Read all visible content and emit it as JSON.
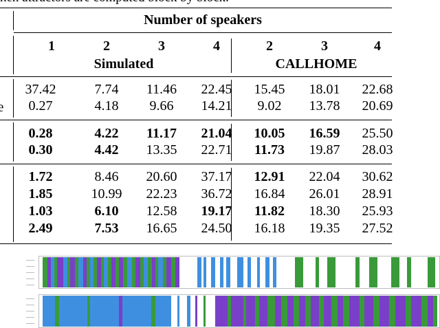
{
  "caption_tail": "hen attractors are computed block by block.",
  "header": {
    "group": "Number of speakers",
    "sim_cols": [
      "1",
      "2",
      "3",
      "4"
    ],
    "sim_label": "Simulated",
    "ch_cols": [
      "2",
      "3",
      "4"
    ],
    "ch_label": "CALLHOME"
  },
  "row_label_fragment": "e",
  "groups": [
    {
      "rows": [
        {
          "cells": [
            "37.42",
            "7.74",
            "11.46",
            "22.45",
            "15.45",
            "18.01",
            "22.68"
          ],
          "bold": [
            false,
            false,
            false,
            false,
            false,
            false,
            false
          ]
        },
        {
          "cells": [
            "0.27",
            "4.18",
            "9.66",
            "14.21",
            "9.02",
            "13.78",
            "20.69"
          ],
          "bold": [
            false,
            false,
            false,
            false,
            false,
            false,
            false
          ]
        }
      ]
    },
    {
      "rows": [
        {
          "cells": [
            "0.28",
            "4.22",
            "11.17",
            "21.04",
            "10.05",
            "16.59",
            "25.50"
          ],
          "bold": [
            true,
            true,
            true,
            true,
            true,
            true,
            false
          ]
        },
        {
          "cells": [
            "0.30",
            "4.42",
            "13.35",
            "22.71",
            "11.73",
            "19.87",
            "28.03"
          ],
          "bold": [
            true,
            true,
            false,
            false,
            true,
            false,
            false
          ]
        }
      ]
    },
    {
      "rows": [
        {
          "cells": [
            "1.72",
            "8.46",
            "20.60",
            "37.17",
            "12.91",
            "22.04",
            "30.62"
          ],
          "bold": [
            true,
            false,
            false,
            false,
            true,
            false,
            false
          ]
        },
        {
          "cells": [
            "1.85",
            "10.99",
            "22.23",
            "36.72",
            "16.84",
            "26.01",
            "28.91"
          ],
          "bold": [
            true,
            false,
            false,
            false,
            false,
            false,
            false
          ]
        },
        {
          "cells": [
            "1.03",
            "6.10",
            "12.58",
            "19.17",
            "11.82",
            "18.30",
            "25.93"
          ],
          "bold": [
            true,
            true,
            false,
            true,
            true,
            false,
            false
          ]
        },
        {
          "cells": [
            "2.49",
            "7.53",
            "16.65",
            "24.50",
            "16.18",
            "19.35",
            "27.52"
          ],
          "bold": [
            true,
            true,
            false,
            false,
            false,
            false,
            false
          ]
        }
      ]
    }
  ],
  "colors": {
    "green": "#3a9a3a",
    "purple": "#7a3fc8",
    "blue": "#3f8fe0"
  },
  "plots": [
    {
      "segments": [
        [
          0.008,
          0.02,
          "green"
        ],
        [
          0.02,
          0.03,
          "purple"
        ],
        [
          0.03,
          0.038,
          "blue"
        ],
        [
          0.038,
          0.045,
          "green"
        ],
        [
          0.045,
          0.06,
          "purple"
        ],
        [
          0.06,
          0.07,
          "blue"
        ],
        [
          0.07,
          0.078,
          "green"
        ],
        [
          0.078,
          0.09,
          "purple"
        ],
        [
          0.09,
          0.098,
          "green"
        ],
        [
          0.098,
          0.11,
          "blue"
        ],
        [
          0.11,
          0.118,
          "purple"
        ],
        [
          0.118,
          0.128,
          "green"
        ],
        [
          0.128,
          0.136,
          "blue"
        ],
        [
          0.136,
          0.145,
          "green"
        ],
        [
          0.145,
          0.155,
          "purple"
        ],
        [
          0.155,
          0.162,
          "green"
        ],
        [
          0.162,
          0.172,
          "blue"
        ],
        [
          0.172,
          0.18,
          "green"
        ],
        [
          0.18,
          0.19,
          "purple"
        ],
        [
          0.19,
          0.2,
          "green"
        ],
        [
          0.2,
          0.21,
          "purple"
        ],
        [
          0.21,
          0.22,
          "green"
        ],
        [
          0.22,
          0.232,
          "blue"
        ],
        [
          0.232,
          0.24,
          "green"
        ],
        [
          0.24,
          0.252,
          "purple"
        ],
        [
          0.252,
          0.262,
          "green"
        ],
        [
          0.262,
          0.272,
          "blue"
        ],
        [
          0.272,
          0.282,
          "green"
        ],
        [
          0.282,
          0.29,
          "purple"
        ],
        [
          0.29,
          0.298,
          "green"
        ],
        [
          0.298,
          0.31,
          "blue"
        ],
        [
          0.31,
          0.318,
          "green"
        ],
        [
          0.318,
          0.33,
          "purple"
        ],
        [
          0.33,
          0.34,
          "green"
        ],
        [
          0.34,
          0.35,
          "purple"
        ],
        [
          0.395,
          0.405,
          "blue"
        ],
        [
          0.41,
          0.418,
          "blue"
        ],
        [
          0.43,
          0.44,
          "blue"
        ],
        [
          0.452,
          0.46,
          "blue"
        ],
        [
          0.468,
          0.478,
          "blue"
        ],
        [
          0.495,
          0.51,
          "blue"
        ],
        [
          0.52,
          0.53,
          "blue"
        ],
        [
          0.545,
          0.552,
          "blue"
        ],
        [
          0.565,
          0.575,
          "blue"
        ],
        [
          0.585,
          0.593,
          "blue"
        ],
        [
          0.64,
          0.66,
          "green"
        ],
        [
          0.69,
          0.7,
          "green"
        ],
        [
          0.72,
          0.74,
          "green"
        ],
        [
          0.79,
          0.8,
          "green"
        ],
        [
          0.825,
          0.845,
          "green"
        ],
        [
          0.88,
          0.9,
          "green"
        ],
        [
          0.92,
          0.93,
          "green"
        ],
        [
          0.97,
          0.99,
          "green"
        ]
      ]
    },
    {
      "segments": [
        [
          0.008,
          0.04,
          "blue"
        ],
        [
          0.04,
          0.05,
          "green"
        ],
        [
          0.05,
          0.12,
          "blue"
        ],
        [
          0.12,
          0.128,
          "green"
        ],
        [
          0.128,
          0.2,
          "blue"
        ],
        [
          0.2,
          0.208,
          "purple"
        ],
        [
          0.208,
          0.28,
          "blue"
        ],
        [
          0.28,
          0.29,
          "green"
        ],
        [
          0.29,
          0.33,
          "blue"
        ],
        [
          0.345,
          0.35,
          "blue"
        ],
        [
          0.37,
          0.378,
          "blue"
        ],
        [
          0.39,
          0.396,
          "purple"
        ],
        [
          0.41,
          0.416,
          "green"
        ],
        [
          0.44,
          0.47,
          "purple"
        ],
        [
          0.47,
          0.48,
          "green"
        ],
        [
          0.48,
          0.51,
          "purple"
        ],
        [
          0.51,
          0.518,
          "green"
        ],
        [
          0.518,
          0.54,
          "purple"
        ],
        [
          0.54,
          0.55,
          "green"
        ],
        [
          0.55,
          0.57,
          "purple"
        ],
        [
          0.57,
          0.59,
          "green"
        ],
        [
          0.59,
          0.605,
          "purple"
        ],
        [
          0.605,
          0.62,
          "green"
        ],
        [
          0.62,
          0.635,
          "purple"
        ],
        [
          0.635,
          0.65,
          "green"
        ],
        [
          0.65,
          0.665,
          "purple"
        ],
        [
          0.665,
          0.678,
          "green"
        ],
        [
          0.678,
          0.7,
          "purple"
        ],
        [
          0.7,
          0.712,
          "green"
        ],
        [
          0.712,
          0.73,
          "purple"
        ],
        [
          0.73,
          0.745,
          "green"
        ],
        [
          0.745,
          0.76,
          "purple"
        ],
        [
          0.76,
          0.775,
          "green"
        ],
        [
          0.775,
          0.8,
          "purple"
        ],
        [
          0.8,
          0.812,
          "green"
        ],
        [
          0.812,
          0.835,
          "purple"
        ],
        [
          0.835,
          0.85,
          "green"
        ],
        [
          0.85,
          0.875,
          "purple"
        ],
        [
          0.875,
          0.89,
          "green"
        ],
        [
          0.89,
          0.915,
          "purple"
        ],
        [
          0.915,
          0.93,
          "green"
        ],
        [
          0.93,
          0.955,
          "purple"
        ],
        [
          0.955,
          0.97,
          "green"
        ],
        [
          0.97,
          0.985,
          "purple"
        ],
        [
          0.985,
          0.995,
          "green"
        ]
      ]
    }
  ]
}
